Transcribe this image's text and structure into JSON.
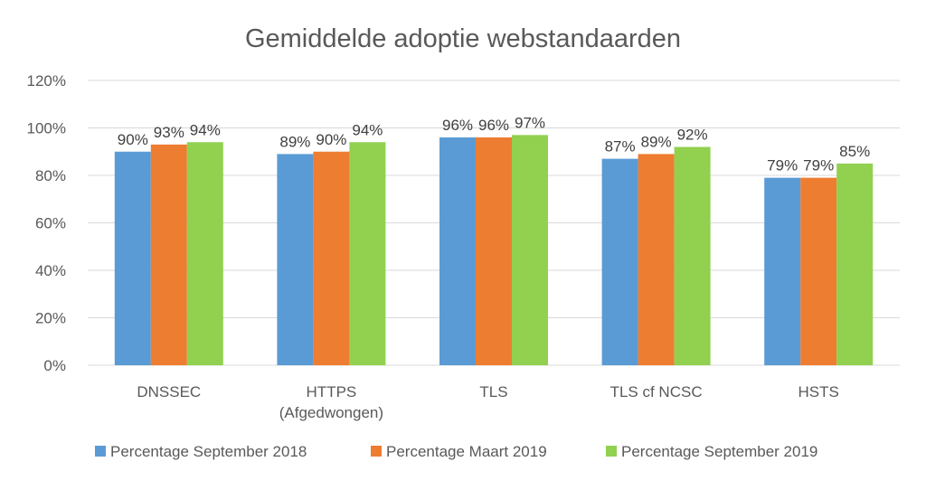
{
  "chart_data": {
    "type": "bar",
    "title": "Gemiddelde adoptie webstandaarden",
    "xlabel": "",
    "ylabel": "",
    "categories": [
      "DNSSEC",
      "HTTPS\n(Afgedwongen)",
      "TLS",
      "TLS cf NCSC",
      "HSTS"
    ],
    "ylim": [
      0,
      120
    ],
    "yticks": [
      0,
      20,
      40,
      60,
      80,
      100,
      120
    ],
    "tick_suffix": "%",
    "grid": true,
    "legend_position": "bottom",
    "series": [
      {
        "name": "Percentage September 2018",
        "color": "#5B9BD5",
        "values": [
          90,
          89,
          96,
          87,
          79
        ],
        "labels": [
          "90%",
          "89%",
          "96%",
          "87%",
          "79%"
        ]
      },
      {
        "name": "Percentage Maart 2019",
        "color": "#ED7D31",
        "values": [
          93,
          90,
          96,
          89,
          79
        ],
        "labels": [
          "93%",
          "90%",
          "96%",
          "89%",
          "79%"
        ]
      },
      {
        "name": "Percentage September 2019",
        "color": "#92D050",
        "values": [
          94,
          94,
          97,
          92,
          85
        ],
        "labels": [
          "94%",
          "94%",
          "97%",
          "92%",
          "85%"
        ]
      }
    ]
  },
  "colors": {
    "gridline": "#D9D9D9",
    "axis_text": "#595959",
    "data_label_text": "#404040",
    "title_text": "#595959"
  }
}
